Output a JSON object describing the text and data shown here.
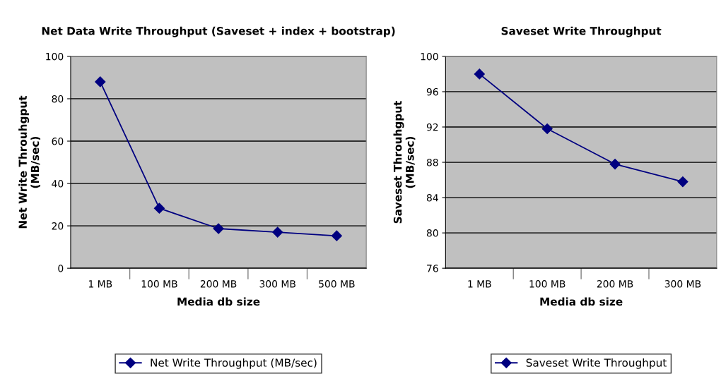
{
  "chart_data": [
    {
      "type": "line",
      "title": "Net Data Write Throughput (Saveset + index + bootstrap)",
      "xlabel": "Media db size",
      "ylabel": "Net Write Throuhgput\n(MB/sec)",
      "categories": [
        "1 MB",
        "100 MB",
        "200 MB",
        "300 MB",
        "500 MB"
      ],
      "series": [
        {
          "name": "Net Write Throughput (MB/sec)",
          "color": "#000080",
          "values": [
            88,
            28.3,
            18.7,
            17,
            15.3
          ]
        }
      ],
      "ylim": [
        0,
        100
      ],
      "yticks": [
        0,
        20,
        40,
        60,
        80,
        100
      ],
      "grid": "y",
      "legend": "bottom",
      "marker": "diamond",
      "line_style": "solid"
    },
    {
      "type": "line",
      "title": "Saveset Write Throughput",
      "xlabel": "Media db size",
      "ylabel": "Saveset Throuhgput\n(MB/sec)",
      "categories": [
        "1 MB",
        "100 MB",
        "200 MB",
        "300 MB"
      ],
      "series": [
        {
          "name": "Saveset Write Throughput",
          "color": "#000080",
          "values": [
            98,
            91.8,
            87.8,
            85.8
          ]
        }
      ],
      "ylim": [
        76,
        100
      ],
      "yticks": [
        76,
        80,
        84,
        88,
        92,
        96,
        100
      ],
      "grid": "y",
      "legend": "bottom",
      "marker": "diamond",
      "line_style": "solid"
    }
  ]
}
